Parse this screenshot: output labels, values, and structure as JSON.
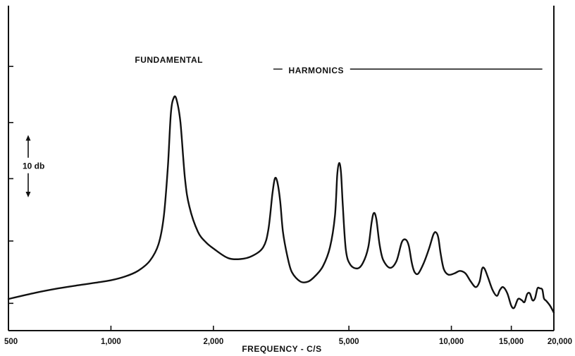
{
  "chart_data": {
    "type": "line",
    "title": "",
    "xlabel": "FREQUENCY - C/S",
    "ylabel": "",
    "x_scale": "log",
    "xlim": [
      500,
      20000
    ],
    "x_ticks": [
      {
        "value": 500,
        "label": "500"
      },
      {
        "value": 1000,
        "label": "1,000"
      },
      {
        "value": 2000,
        "label": "2,000"
      },
      {
        "value": 5000,
        "label": "5,000"
      },
      {
        "value": 10000,
        "label": "10,000"
      },
      {
        "value": 15000,
        "label": "15,000"
      },
      {
        "value": 20000,
        "label": "20,000"
      }
    ],
    "y_unit": "db",
    "ylim": [
      0,
      45
    ],
    "y_ticks": [
      2,
      12,
      22,
      31,
      40
    ],
    "scale_bar": {
      "label": "10 db",
      "from": 19,
      "to": 29
    },
    "grid": false,
    "annotations": [
      {
        "text": "FUNDAMENTAL",
        "x": 1480
      },
      {
        "text": "HARMONICS",
        "x_start": 3000,
        "x_end": 18500
      }
    ],
    "series": [
      {
        "x": [
          500,
          600,
          700,
          800,
          900,
          1000,
          1100,
          1200,
          1300,
          1380,
          1430,
          1470,
          1500,
          1530,
          1560,
          1600,
          1650,
          1700,
          1800,
          1900,
          2000,
          2200,
          2400,
          2600,
          2800,
          2900,
          2980,
          3030,
          3080,
          3140,
          3200,
          3300,
          3400,
          3600,
          3800,
          4000,
          4200,
          4400,
          4550,
          4620,
          4680,
          4740,
          4800,
          4900,
          5050,
          5300,
          5500,
          5700,
          5830,
          5920,
          6020,
          6150,
          6300,
          6600,
          6900,
          7150,
          7350,
          7500,
          7650,
          7800,
          8000,
          8300,
          8600,
          8850,
          9000,
          9150,
          9300,
          9500,
          9800,
          10200,
          10600,
          11000,
          11400,
          11800,
          12100,
          12300,
          12500,
          12800,
          13200,
          13600,
          13900,
          14200,
          14600,
          15000,
          15300,
          15700,
          16100,
          16400,
          16700,
          17000,
          17300,
          17600,
          17900,
          18200,
          18500,
          18700,
          19000,
          19500,
          20000
        ],
        "y": [
          2.7,
          3.7,
          4.4,
          4.9,
          5.3,
          5.7,
          6.3,
          7.2,
          8.8,
          11.5,
          16,
          24,
          32.5,
          35,
          34.6,
          31,
          22,
          17.5,
          13.5,
          11.8,
          10.8,
          9.3,
          9.1,
          9.6,
          11,
          13.8,
          19.5,
          22,
          21.5,
          18.5,
          13.5,
          9.5,
          7,
          5.5,
          5.5,
          6.5,
          8,
          11,
          16,
          22.5,
          24.5,
          23,
          17.5,
          10.5,
          8.2,
          7.6,
          8.5,
          11,
          15,
          16.5,
          15.5,
          11.5,
          9,
          7.7,
          8.8,
          11.8,
          12.2,
          11.2,
          8.5,
          7,
          6.8,
          8.5,
          10.8,
          13,
          13.4,
          12.6,
          10,
          7.5,
          6.6,
          6.8,
          7.2,
          6.8,
          5.5,
          4.6,
          5.5,
          7.5,
          7.6,
          6.2,
          4.2,
          3.2,
          4.2,
          4.6,
          3.6,
          1.6,
          1.3,
          2.7,
          2.5,
          2.2,
          3.5,
          3.6,
          2.5,
          2.8,
          4.4,
          4.4,
          4.2,
          2.8,
          2.4,
          1.6,
          0.5
        ]
      }
    ]
  }
}
